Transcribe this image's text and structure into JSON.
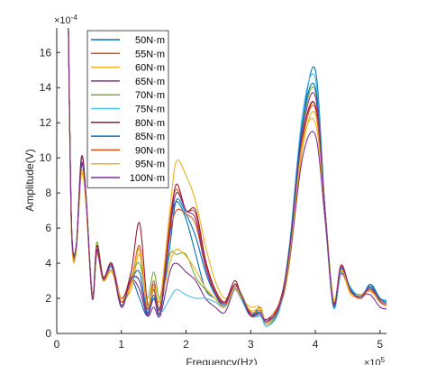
{
  "chart_data": {
    "type": "line",
    "xlabel": "Frequency(Hz)",
    "ylabel": "Amplitude(V)",
    "x_exponent_label": "×10^5",
    "y_exponent_label": "×10^-4",
    "xlim": [
      0,
      510000
    ],
    "ylim": [
      0,
      17.4
    ],
    "xticks": [
      0,
      100000,
      200000,
      300000,
      400000,
      500000
    ],
    "xtick_labels": [
      "0",
      "1",
      "2",
      "3",
      "4",
      "5"
    ],
    "yticks": [
      0,
      2,
      4,
      6,
      8,
      10,
      12,
      14,
      16
    ],
    "ytick_labels": [
      "0",
      "2",
      "4",
      "6",
      "8",
      "10",
      "12",
      "14",
      "16"
    ],
    "legend_position": "top-left inside",
    "grid": false,
    "x": [
      18000,
      23000,
      30000,
      38000,
      45000,
      55000,
      62000,
      72000,
      85000,
      100000,
      115000,
      128000,
      140000,
      150000,
      160000,
      175000,
      185000,
      200000,
      215000,
      230000,
      245000,
      260000,
      275000,
      285000,
      300000,
      315000,
      325000,
      345000,
      360000,
      380000,
      400000,
      415000,
      428000,
      440000,
      455000,
      470000,
      485000,
      500000,
      510000
    ],
    "series": [
      {
        "name": "50N·m",
        "color": "#0072BD",
        "values": [
          17.4,
          6.0,
          5.0,
          10.0,
          8.0,
          2.0,
          4.8,
          3.0,
          4.0,
          1.5,
          3.0,
          2.0,
          1.0,
          2.0,
          1.5,
          6.0,
          7.5,
          6.5,
          4.5,
          2.5,
          2.0,
          1.5,
          2.5,
          2.0,
          1.0,
          1.5,
          0.5,
          1.5,
          5.0,
          12.0,
          15.0,
          7.0,
          1.5,
          3.5,
          2.5,
          2.0,
          2.8,
          2.0,
          1.8
        ]
      },
      {
        "name": "55N·m",
        "color": "#D95319",
        "values": [
          17.4,
          5.8,
          4.8,
          9.5,
          7.8,
          2.2,
          4.5,
          3.2,
          3.8,
          1.8,
          2.8,
          5.0,
          1.5,
          3.0,
          1.5,
          6.5,
          8.2,
          7.0,
          6.8,
          4.0,
          2.5,
          1.8,
          2.8,
          2.2,
          1.2,
          1.2,
          0.8,
          1.8,
          4.5,
          11.0,
          13.0,
          7.0,
          1.8,
          3.8,
          2.4,
          2.0,
          2.5,
          1.8,
          1.6
        ]
      },
      {
        "name": "60N·m",
        "color": "#EDB120",
        "values": [
          17.4,
          5.5,
          4.8,
          9.0,
          7.5,
          2.0,
          4.5,
          3.0,
          3.5,
          2.0,
          2.5,
          4.5,
          1.5,
          2.5,
          2.0,
          7.0,
          9.8,
          9.0,
          7.5,
          5.0,
          3.0,
          2.0,
          2.5,
          2.0,
          1.5,
          1.5,
          0.5,
          1.5,
          4.0,
          10.5,
          12.5,
          7.0,
          2.0,
          3.5,
          2.2,
          2.2,
          2.4,
          1.8,
          1.6
        ]
      },
      {
        "name": "65N·m",
        "color": "#7E2F8E",
        "values": [
          17.4,
          5.8,
          4.8,
          9.5,
          7.8,
          2.0,
          4.8,
          3.0,
          3.8,
          1.5,
          3.0,
          2.5,
          1.0,
          1.5,
          1.0,
          3.5,
          4.0,
          3.5,
          3.0,
          2.0,
          1.5,
          1.2,
          2.5,
          2.0,
          1.0,
          1.0,
          0.8,
          1.5,
          4.2,
          10.0,
          11.3,
          6.5,
          1.5,
          3.4,
          2.4,
          2.2,
          2.2,
          1.5,
          1.4
        ]
      },
      {
        "name": "70N·m",
        "color": "#77AC30",
        "values": [
          17.4,
          5.6,
          4.7,
          9.5,
          7.8,
          2.2,
          5.2,
          3.2,
          3.8,
          1.8,
          3.2,
          4.0,
          2.0,
          3.5,
          2.0,
          4.5,
          4.5,
          4.5,
          3.2,
          2.5,
          2.0,
          1.5,
          2.8,
          2.3,
          1.2,
          1.2,
          0.6,
          1.6,
          5.0,
          11.8,
          13.8,
          7.0,
          1.6,
          3.6,
          2.5,
          2.2,
          2.6,
          2.0,
          1.8
        ]
      },
      {
        "name": "75N·m",
        "color": "#4DBEEE",
        "values": [
          17.4,
          5.8,
          4.8,
          9.8,
          8.0,
          2.2,
          5.0,
          3.0,
          4.0,
          1.6,
          3.0,
          3.0,
          1.2,
          2.5,
          1.2,
          2.0,
          2.5,
          2.2,
          2.0,
          2.0,
          1.8,
          1.5,
          2.5,
          2.0,
          1.0,
          1.0,
          0.4,
          1.4,
          5.0,
          12.5,
          14.5,
          7.0,
          1.5,
          3.5,
          2.6,
          2.1,
          2.6,
          2.0,
          1.9
        ]
      },
      {
        "name": "80N·m",
        "color": "#A2142F",
        "values": [
          17.4,
          6.0,
          4.8,
          10.0,
          8.0,
          2.0,
          5.0,
          3.2,
          4.0,
          2.0,
          3.5,
          6.3,
          1.8,
          2.5,
          1.5,
          6.0,
          8.5,
          7.0,
          7.0,
          4.2,
          2.5,
          1.8,
          3.0,
          2.2,
          1.0,
          1.2,
          0.6,
          1.8,
          4.8,
          11.2,
          13.0,
          7.0,
          1.8,
          3.9,
          2.4,
          2.0,
          2.5,
          1.8,
          1.6
        ]
      },
      {
        "name": "85N·m",
        "color": "#0072BD",
        "values": [
          17.4,
          5.8,
          4.8,
          9.5,
          7.8,
          2.0,
          4.6,
          3.0,
          3.8,
          1.6,
          3.0,
          3.5,
          1.2,
          2.2,
          1.2,
          5.0,
          7.6,
          6.8,
          5.5,
          3.5,
          2.2,
          1.6,
          2.6,
          2.1,
          1.1,
          1.2,
          0.6,
          1.6,
          4.9,
          12.0,
          14.0,
          7.0,
          1.6,
          3.7,
          2.5,
          2.1,
          2.7,
          2.0,
          1.8
        ]
      },
      {
        "name": "90N·m",
        "color": "#D95319",
        "values": [
          17.4,
          5.7,
          4.8,
          9.2,
          7.6,
          2.2,
          4.6,
          3.1,
          3.6,
          1.8,
          3.0,
          4.8,
          1.4,
          2.8,
          1.4,
          5.6,
          7.0,
          6.8,
          6.2,
          3.8,
          2.4,
          1.7,
          2.7,
          2.2,
          1.2,
          1.3,
          0.7,
          1.7,
          4.6,
          11.0,
          12.8,
          7.0,
          1.7,
          3.8,
          2.4,
          2.0,
          2.5,
          1.8,
          1.6
        ]
      },
      {
        "name": "95N·m",
        "color": "#EDB120",
        "values": [
          17.4,
          5.5,
          4.6,
          9.2,
          7.5,
          2.1,
          4.6,
          3.0,
          3.6,
          2.0,
          2.8,
          4.8,
          1.6,
          2.6,
          1.8,
          4.0,
          4.8,
          4.4,
          3.6,
          2.6,
          2.0,
          1.5,
          2.6,
          2.1,
          1.3,
          1.4,
          0.6,
          1.6,
          4.4,
          10.8,
          12.0,
          7.0,
          1.9,
          3.6,
          2.3,
          2.2,
          2.4,
          1.9,
          1.7
        ]
      },
      {
        "name": "100N·m",
        "color": "#7E2F8E",
        "values": [
          17.4,
          5.9,
          4.9,
          9.6,
          7.9,
          2.0,
          4.7,
          3.1,
          3.9,
          1.6,
          3.1,
          3.0,
          1.1,
          2.0,
          1.2,
          5.8,
          8.0,
          7.0,
          6.5,
          3.8,
          2.3,
          1.7,
          2.8,
          2.2,
          1.1,
          1.1,
          0.7,
          1.6,
          4.7,
          11.5,
          13.5,
          7.0,
          1.7,
          3.8,
          2.4,
          2.1,
          2.6,
          1.9,
          1.7
        ]
      }
    ]
  }
}
